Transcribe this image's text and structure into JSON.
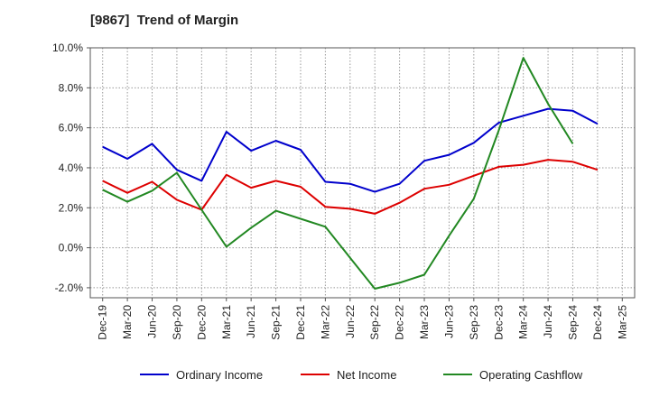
{
  "chart_data": {
    "type": "line",
    "title": "[9867]  Trend of Margin",
    "xlabel": "",
    "ylabel": "",
    "categories": [
      "Dec-19",
      "Mar-20",
      "Jun-20",
      "Sep-20",
      "Dec-20",
      "Mar-21",
      "Jun-21",
      "Sep-21",
      "Dec-21",
      "Mar-22",
      "Jun-22",
      "Sep-22",
      "Dec-22",
      "Mar-23",
      "Jun-23",
      "Sep-23",
      "Dec-23",
      "Mar-24",
      "Jun-24",
      "Sep-24",
      "Dec-24",
      "Mar-25"
    ],
    "ylim": [
      -2.5,
      10.0
    ],
    "yticks": [
      -2.0,
      0.0,
      2.0,
      4.0,
      6.0,
      8.0,
      10.0
    ],
    "ytick_labels": [
      "-2.0%",
      "0.0%",
      "2.0%",
      "4.0%",
      "6.0%",
      "8.0%",
      "10.0%"
    ],
    "grid": true,
    "legend_position": "bottom",
    "series": [
      {
        "name": "Ordinary Income",
        "color": "#0000cc",
        "values": [
          5.05,
          4.45,
          5.2,
          3.9,
          3.35,
          5.8,
          4.85,
          5.35,
          4.9,
          3.3,
          3.2,
          2.8,
          3.2,
          4.35,
          4.65,
          5.25,
          6.25,
          6.6,
          6.95,
          6.85,
          6.2,
          null
        ]
      },
      {
        "name": "Net Income",
        "color": "#dd0000",
        "values": [
          3.35,
          2.75,
          3.3,
          2.4,
          1.9,
          3.65,
          3.0,
          3.35,
          3.05,
          2.05,
          1.95,
          1.7,
          2.25,
          2.95,
          3.15,
          3.6,
          4.05,
          4.15,
          4.4,
          4.3,
          3.9,
          null
        ]
      },
      {
        "name": "Operating Cashflow",
        "color": "#228822",
        "values": [
          2.9,
          2.3,
          2.85,
          3.75,
          1.9,
          0.05,
          1.0,
          1.85,
          1.45,
          1.05,
          -0.5,
          -2.05,
          -1.75,
          -1.35,
          0.6,
          2.45,
          5.85,
          9.5,
          7.2,
          5.2,
          null,
          null
        ]
      }
    ]
  }
}
